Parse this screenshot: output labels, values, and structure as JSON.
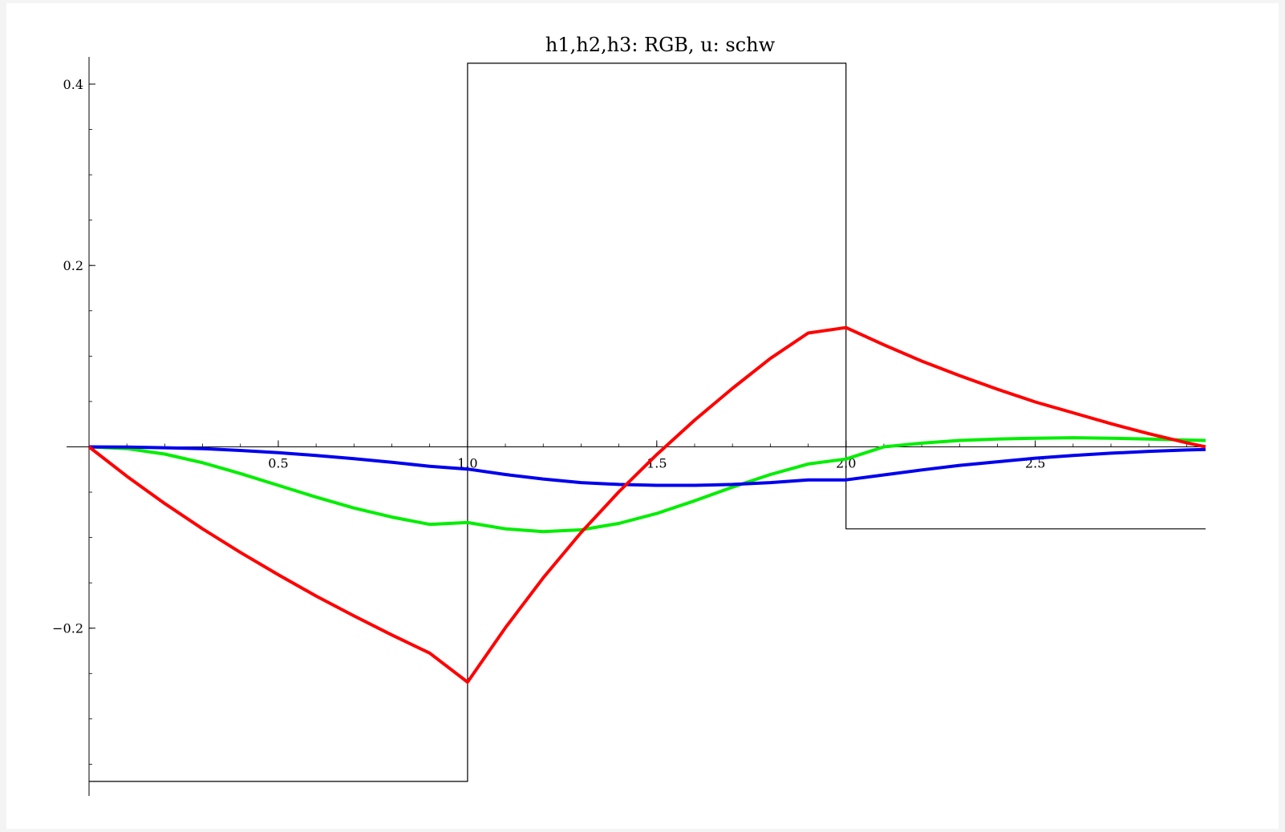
{
  "chart_data": {
    "type": "line",
    "title": "h1,h2,h3: RGB, u: schw",
    "xlabel": "",
    "ylabel": "",
    "xlim": [
      0.0,
      2.95
    ],
    "ylim": [
      -0.385,
      0.43
    ],
    "x_ticks": [
      {
        "value": 0.5,
        "label": "0.5"
      },
      {
        "value": 1.0,
        "label": "1.0"
      },
      {
        "value": 1.5,
        "label": "1.5"
      },
      {
        "value": 2.0,
        "label": "2.0"
      },
      {
        "value": 2.5,
        "label": "2.5"
      }
    ],
    "y_ticks": [
      {
        "value": 0.4,
        "label": "0.4"
      },
      {
        "value": 0.2,
        "label": "0.2"
      },
      {
        "value": -0.2,
        "label": "−0.2"
      }
    ],
    "x_minor_step": 0.1,
    "y_minor_step": 0.05,
    "grid": false,
    "series": [
      {
        "name": "h1",
        "color": "#ff0000",
        "x": [
          0.0,
          0.1,
          0.2,
          0.3,
          0.4,
          0.5,
          0.6,
          0.7,
          0.8,
          0.9,
          1.0,
          1.1,
          1.2,
          1.3,
          1.4,
          1.5,
          1.6,
          1.7,
          1.8,
          1.9,
          2.0,
          2.1,
          2.2,
          2.3,
          2.4,
          2.5,
          2.6,
          2.7,
          2.8,
          2.9,
          2.95
        ],
        "y": [
          0.0,
          -0.0325,
          -0.0625,
          -0.0905,
          -0.1165,
          -0.141,
          -0.1645,
          -0.1865,
          -0.2075,
          -0.2275,
          -0.2595,
          -0.1995,
          -0.1445,
          -0.0945,
          -0.0495,
          -0.0085,
          0.0295,
          0.0645,
          0.0975,
          0.1255,
          0.1315,
          0.1125,
          0.0945,
          0.0785,
          0.0635,
          0.0495,
          0.0375,
          0.0255,
          0.0145,
          0.0045,
          0.0
        ]
      },
      {
        "name": "h2",
        "color": "#00ee00",
        "x": [
          0.0,
          0.1,
          0.2,
          0.3,
          0.4,
          0.5,
          0.6,
          0.7,
          0.8,
          0.9,
          1.0,
          1.1,
          1.2,
          1.3,
          1.4,
          1.5,
          1.6,
          1.7,
          1.8,
          1.9,
          2.0,
          2.1,
          2.2,
          2.3,
          2.4,
          2.5,
          2.6,
          2.7,
          2.8,
          2.9,
          2.95
        ],
        "y": [
          0.0,
          -0.002,
          -0.008,
          -0.0175,
          -0.0295,
          -0.0425,
          -0.0555,
          -0.0675,
          -0.0775,
          -0.0855,
          -0.0835,
          -0.0905,
          -0.0935,
          -0.0915,
          -0.0845,
          -0.0735,
          -0.0595,
          -0.0445,
          -0.0305,
          -0.019,
          -0.0135,
          0.0,
          0.004,
          0.007,
          0.0085,
          0.0095,
          0.01,
          0.0095,
          0.0085,
          0.0075,
          0.007
        ]
      },
      {
        "name": "h3",
        "color": "#0000ee",
        "x": [
          0.0,
          0.1,
          0.2,
          0.3,
          0.4,
          0.5,
          0.6,
          0.7,
          0.8,
          0.9,
          1.0,
          1.1,
          1.2,
          1.3,
          1.4,
          1.5,
          1.6,
          1.7,
          1.8,
          1.9,
          2.0,
          2.1,
          2.2,
          2.3,
          2.4,
          2.5,
          2.6,
          2.7,
          2.8,
          2.9,
          2.95
        ],
        "y": [
          0.0,
          -0.0003,
          -0.001,
          -0.002,
          -0.004,
          -0.0065,
          -0.0095,
          -0.013,
          -0.017,
          -0.0215,
          -0.0245,
          -0.0305,
          -0.0355,
          -0.0395,
          -0.0415,
          -0.0425,
          -0.0425,
          -0.0415,
          -0.0395,
          -0.0365,
          -0.0365,
          -0.031,
          -0.0255,
          -0.0205,
          -0.0165,
          -0.0125,
          -0.0095,
          -0.007,
          -0.005,
          -0.0035,
          -0.003
        ]
      },
      {
        "name": "u",
        "color": "#000000",
        "x": [
          0.0,
          1.0,
          1.0,
          2.0,
          2.0,
          2.95
        ],
        "y": [
          -0.369,
          -0.369,
          0.423,
          0.423,
          -0.0905,
          -0.0905
        ],
        "style": "step"
      }
    ]
  }
}
